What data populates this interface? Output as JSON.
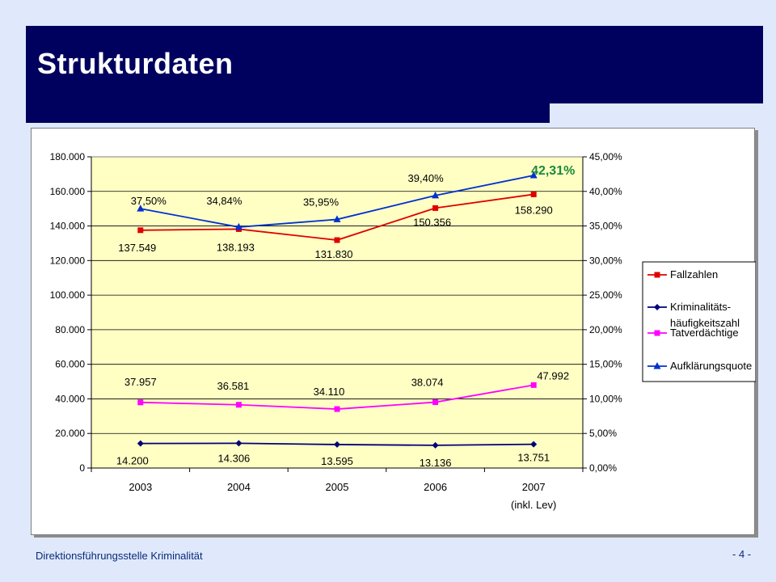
{
  "slide": {
    "title": "Strukturdaten",
    "footer": "Direktionsführungsstelle Kriminalität",
    "page_number": "- 4 -"
  },
  "colors": {
    "title_bar": "#00005e",
    "plot_background": "#ffffc4",
    "fallzahlen": "#e00000",
    "kriminalitaet": "#00007a",
    "tatverdaechtige": "#ff00ff",
    "aufklaerung": "#0030d0",
    "highlight_label": "#1a8a3a"
  },
  "chart_data": {
    "type": "line",
    "categories": [
      "2003",
      "2004",
      "2005",
      "2006",
      "2007"
    ],
    "category_sublabels": [
      "",
      "",
      "",
      "",
      "(inkl. Lev)"
    ],
    "y_left": {
      "range": [
        0,
        180000
      ],
      "ticks": [
        "0",
        "20.000",
        "40.000",
        "60.000",
        "80.000",
        "100.000",
        "120.000",
        "140.000",
        "160.000",
        "180.000"
      ]
    },
    "y_right": {
      "range": [
        0,
        45
      ],
      "ticks": [
        "0,00%",
        "5,00%",
        "10,00%",
        "15,00%",
        "20,00%",
        "25,00%",
        "30,00%",
        "35,00%",
        "40,00%",
        "45,00%"
      ]
    },
    "grid": "horizontal",
    "legend_position": "right",
    "series": [
      {
        "name": "Fallzahlen",
        "axis": "left",
        "marker": "square",
        "values": [
          137549,
          138193,
          131830,
          150356,
          158290
        ],
        "labels": [
          "137.549",
          "138.193",
          "131.830",
          "150.356",
          "158.290"
        ]
      },
      {
        "name": "Kriminalitäts-häufigkeitszahl",
        "axis": "left",
        "marker": "diamond",
        "legend_lines": [
          "Kriminalitäts-",
          "häufigkeitszahl"
        ],
        "values": [
          14200,
          14306,
          13595,
          13136,
          13751
        ],
        "labels": [
          "14.200",
          "14.306",
          "13.595",
          "13.136",
          "13.751"
        ]
      },
      {
        "name": "Tatverdächtige",
        "axis": "left",
        "marker": "square",
        "values": [
          37957,
          36581,
          34110,
          38074,
          47992
        ],
        "labels": [
          "37.957",
          "36.581",
          "34.110",
          "38.074",
          "47.992"
        ]
      },
      {
        "name": "Aufklärungsquote",
        "axis": "right",
        "marker": "triangle",
        "values": [
          37.5,
          34.84,
          35.95,
          39.4,
          42.31
        ],
        "labels": [
          "37,50%",
          "34,84%",
          "35,95%",
          "39,40%",
          "42,31%"
        ]
      }
    ]
  }
}
